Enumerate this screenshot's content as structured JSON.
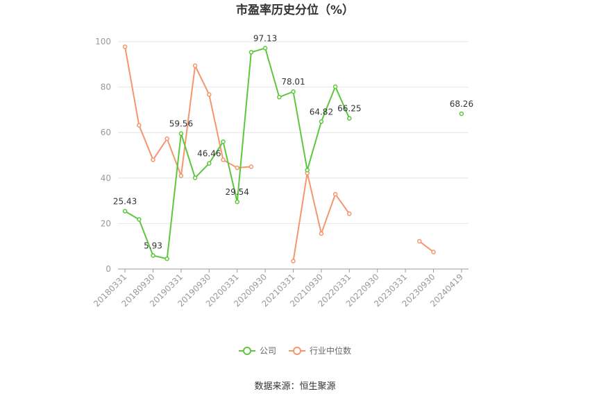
{
  "chart_data": {
    "type": "line",
    "title": "市盈率历史分位（%）",
    "ylim": [
      0,
      100
    ],
    "yticks": [
      0,
      20,
      40,
      60,
      80,
      100
    ],
    "x": [
      "20180331",
      "20180630",
      "20180930",
      "20181231",
      "20190331",
      "20190630",
      "20190930",
      "20191231",
      "20200331",
      "20200630",
      "20200930",
      "20201231",
      "20210331",
      "20210630",
      "20210930",
      "20211231",
      "20220331",
      "20220630",
      "20220930",
      "20221231",
      "20230331",
      "20230630",
      "20230930",
      "20231231",
      "20240419"
    ],
    "xticks": [
      "20180331",
      "20180930",
      "20190331",
      "20190930",
      "20200331",
      "20200930",
      "20210331",
      "20210930",
      "20220331",
      "20220930",
      "20230331",
      "20230930",
      "20240419"
    ],
    "series": [
      {
        "name": "公司",
        "color": "#5cc73d",
        "values": [
          25.43,
          21.8,
          5.93,
          4.5,
          59.56,
          40.1,
          46.46,
          56.0,
          29.54,
          95.3,
          97.13,
          75.6,
          78.01,
          43.5,
          64.82,
          80.2,
          66.25,
          null,
          null,
          null,
          null,
          null,
          null,
          null,
          68.26
        ],
        "labels": {
          "0": "25.43",
          "2": "5.93",
          "4": "59.56",
          "6": "46.46",
          "8": "29.54",
          "10": "97.13",
          "12": "78.01",
          "14": "64.82",
          "16": "66.25",
          "24": "68.26"
        }
      },
      {
        "name": "行业中位数",
        "color": "#f5956b",
        "values": [
          97.7,
          63.2,
          48.0,
          57.3,
          41.0,
          89.4,
          76.7,
          48.0,
          44.5,
          45.0,
          null,
          null,
          3.5,
          42.2,
          15.6,
          32.9,
          24.3,
          null,
          null,
          null,
          null,
          12.2,
          7.5,
          null,
          null
        ],
        "labels": {}
      }
    ],
    "legend_position": "bottom"
  },
  "source_text": "数据来源：恒生聚源"
}
